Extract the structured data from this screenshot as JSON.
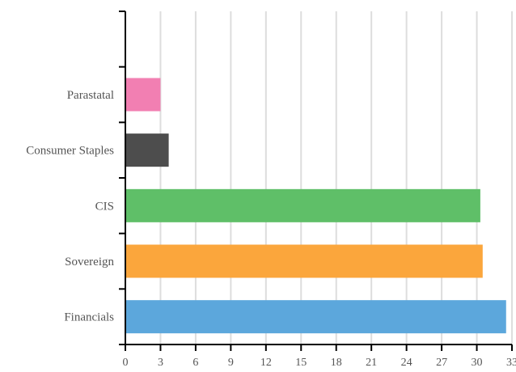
{
  "chart_data": {
    "type": "bar",
    "orientation": "horizontal",
    "categories": [
      "Financials",
      "Sovereign",
      "CIS",
      "Consumer Staples",
      "Parastatal",
      ""
    ],
    "values": [
      32.5,
      30.5,
      30.3,
      3.7,
      3.0,
      null
    ],
    "colors": [
      "#5ca7dc",
      "#fba63c",
      "#5fbf68",
      "#4d4d4d",
      "#f27fb2",
      null
    ],
    "xlim": [
      0,
      33
    ],
    "xticks": [
      0,
      3,
      6,
      9,
      12,
      15,
      18,
      21,
      24,
      27,
      30,
      33
    ],
    "grid": true,
    "title": "",
    "xlabel": "",
    "ylabel": ""
  }
}
